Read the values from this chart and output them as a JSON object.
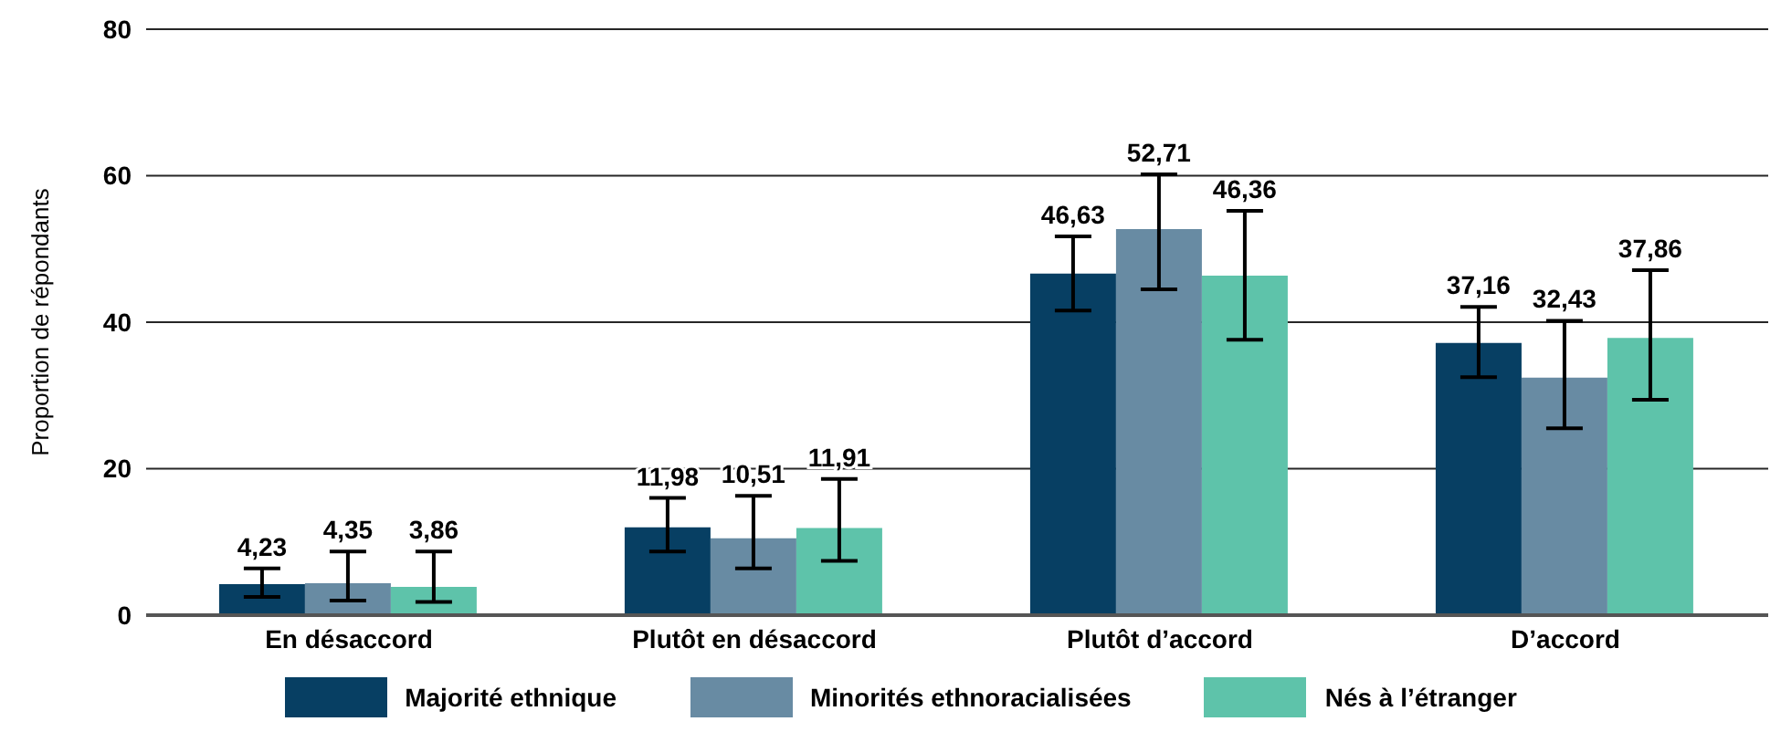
{
  "chart_data": {
    "type": "bar",
    "ylabel": "Proportion de répondants",
    "categories": [
      "En désaccord",
      "Plutôt en désaccord",
      "Plutôt d’accord",
      "D’accord"
    ],
    "series": [
      {
        "name": "Majorité ethnique",
        "color": "#073f63",
        "values": [
          4.23,
          11.98,
          46.63,
          37.16
        ],
        "value_labels": [
          "4,23",
          "11,98",
          "46,63",
          "37,16"
        ],
        "errors": [
          [
            2.5,
            6.4
          ],
          [
            8.7,
            16.0
          ],
          [
            41.6,
            51.7
          ],
          [
            32.5,
            42.1
          ]
        ]
      },
      {
        "name": "Minorités ethnoracialisées",
        "color": "#688ba3",
        "values": [
          4.35,
          10.51,
          52.71,
          32.43
        ],
        "value_labels": [
          "4,35",
          "10,51",
          "52,71",
          "32,43"
        ],
        "errors": [
          [
            2.0,
            8.7
          ],
          [
            6.4,
            16.3
          ],
          [
            44.5,
            60.2
          ],
          [
            25.5,
            40.2
          ]
        ]
      },
      {
        "name": "Nés à l’étranger",
        "color": "#5ec3aa",
        "values": [
          3.86,
          11.91,
          46.36,
          37.86
        ],
        "value_labels": [
          "3,86",
          "11,91",
          "46,36",
          "37,86"
        ],
        "errors": [
          [
            1.8,
            8.7
          ],
          [
            7.4,
            18.6
          ],
          [
            37.6,
            55.2
          ],
          [
            29.4,
            47.1
          ]
        ]
      }
    ],
    "ylim": [
      0,
      80
    ],
    "yticks": [
      0,
      20,
      40,
      60,
      80
    ],
    "grid": "y",
    "legend": "bottom"
  }
}
